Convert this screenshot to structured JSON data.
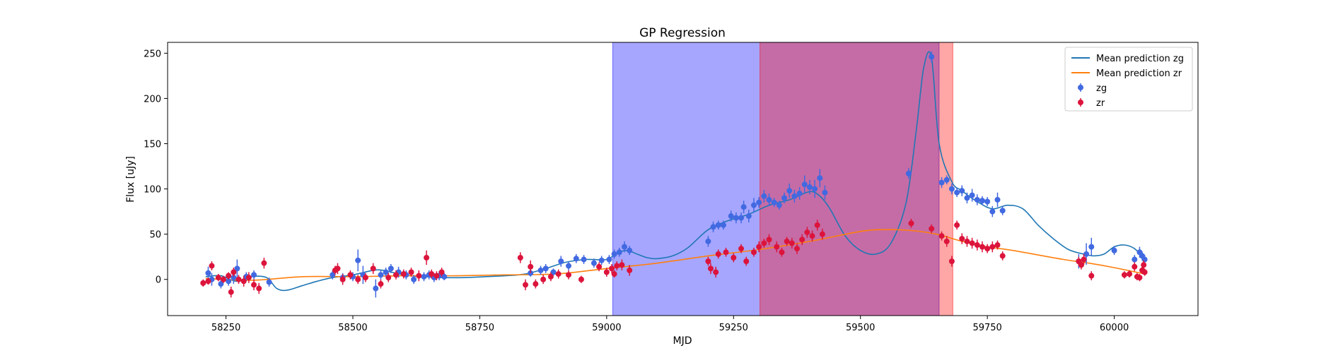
{
  "chart_data": {
    "type": "scatter",
    "title": "GP Regression",
    "xlabel": "MJD",
    "ylabel": "Flux [uJy]",
    "xlim": [
      58135,
      60165
    ],
    "ylim": [
      -40,
      262
    ],
    "xticks": [
      58250,
      58500,
      58750,
      59000,
      59250,
      59500,
      59750,
      60000
    ],
    "yticks": [
      0,
      50,
      100,
      150,
      200,
      250
    ],
    "grid": false,
    "legend_position": "top-right",
    "spans": [
      {
        "name": "zg window",
        "x0": 59012,
        "x1": 59655,
        "color": "#0000ff",
        "alpha": 0.35
      },
      {
        "name": "zr window",
        "x0": 59302,
        "x1": 59682,
        "color": "#ff0000",
        "alpha": 0.35
      }
    ],
    "lines": [
      {
        "name": "Mean prediction zg",
        "color": "#1f77b4",
        "x": [
          58210,
          58240,
          58270,
          58300,
          58330,
          58350,
          58370,
          58400,
          58430,
          58460,
          58500,
          58540,
          58560,
          58600,
          58640,
          58680,
          58720,
          58760,
          58800,
          58840,
          58880,
          58920,
          58960,
          59000,
          59020,
          59040,
          59060,
          59080,
          59100,
          59130,
          59160,
          59200,
          59240,
          59280,
          59320,
          59360,
          59400,
          59420,
          59440,
          59470,
          59500,
          59530,
          59560,
          59590,
          59610,
          59625,
          59640,
          59655,
          59680,
          59700,
          59730,
          59760,
          59790,
          59820,
          59850,
          59880,
          59910,
          59940,
          59960,
          59980,
          60000,
          60020,
          60040,
          60060
        ],
        "y": [
          3,
          4,
          -2,
          3,
          2,
          -10,
          -12,
          -7,
          -2,
          2,
          5,
          10,
          10,
          5,
          3,
          2,
          2,
          3,
          4,
          6,
          12,
          19,
          22,
          22,
          29,
          32,
          28,
          24,
          23,
          26,
          35,
          55,
          65,
          72,
          82,
          88,
          97,
          92,
          78,
          48,
          32,
          28,
          40,
          85,
          165,
          235,
          245,
          150,
          108,
          98,
          86,
          78,
          82,
          78,
          60,
          45,
          33,
          28,
          26,
          28,
          36,
          38,
          34,
          22
        ]
      },
      {
        "name": "Mean prediction zr",
        "color": "#ff7f0e",
        "x": [
          58210,
          58300,
          58400,
          58500,
          58600,
          58700,
          58800,
          58900,
          59000,
          59100,
          59200,
          59300,
          59400,
          59500,
          59550,
          59600,
          59650,
          59700,
          59750,
          59800,
          59900,
          59950,
          60000,
          60060
        ],
        "y": [
          1,
          -1,
          3,
          3,
          4,
          4,
          5,
          6,
          12,
          18,
          26,
          33,
          42,
          53,
          55,
          54,
          50,
          42,
          36,
          32,
          22,
          18,
          13,
          6
        ]
      }
    ],
    "series": [
      {
        "name": "zg",
        "color": "#4169e1",
        "points": [
          [
            58215,
            7,
            7
          ],
          [
            58222,
            0,
            7
          ],
          [
            58240,
            -5,
            5
          ],
          [
            58255,
            -2,
            5
          ],
          [
            58265,
            2,
            7
          ],
          [
            58272,
            12,
            10
          ],
          [
            58290,
            3,
            5
          ],
          [
            58305,
            5,
            5
          ],
          [
            58335,
            -3,
            5
          ],
          [
            58460,
            5,
            5
          ],
          [
            58480,
            2,
            5
          ],
          [
            58500,
            3,
            5
          ],
          [
            58510,
            21,
            12
          ],
          [
            58520,
            5,
            10
          ],
          [
            58545,
            -10,
            10
          ],
          [
            58555,
            5,
            5
          ],
          [
            58565,
            8,
            5
          ],
          [
            58575,
            12,
            5
          ],
          [
            58590,
            8,
            6
          ],
          [
            58605,
            5,
            5
          ],
          [
            58620,
            0,
            5
          ],
          [
            58640,
            3,
            5
          ],
          [
            58650,
            5,
            5
          ],
          [
            58660,
            2,
            5
          ],
          [
            58670,
            4,
            5
          ],
          [
            58680,
            3,
            4
          ],
          [
            58850,
            7,
            4
          ],
          [
            58870,
            10,
            5
          ],
          [
            58880,
            12,
            5
          ],
          [
            58895,
            8,
            4
          ],
          [
            58910,
            20,
            6
          ],
          [
            58925,
            15,
            5
          ],
          [
            58940,
            23,
            5
          ],
          [
            58955,
            22,
            5
          ],
          [
            58975,
            18,
            5
          ],
          [
            58990,
            21,
            5
          ],
          [
            59005,
            22,
            5
          ],
          [
            59015,
            28,
            5
          ],
          [
            59025,
            30,
            5
          ],
          [
            59035,
            36,
            6
          ],
          [
            59045,
            32,
            5
          ],
          [
            59200,
            42,
            6
          ],
          [
            59210,
            58,
            6
          ],
          [
            59220,
            60,
            5
          ],
          [
            59230,
            60,
            5
          ],
          [
            59245,
            70,
            6
          ],
          [
            59255,
            68,
            6
          ],
          [
            59265,
            68,
            6
          ],
          [
            59270,
            80,
            7
          ],
          [
            59280,
            70,
            7
          ],
          [
            59290,
            82,
            8
          ],
          [
            59300,
            85,
            6
          ],
          [
            59310,
            92,
            7
          ],
          [
            59320,
            88,
            7
          ],
          [
            59330,
            85,
            5
          ],
          [
            59340,
            82,
            5
          ],
          [
            59350,
            90,
            6
          ],
          [
            59360,
            98,
            8
          ],
          [
            59370,
            92,
            7
          ],
          [
            59380,
            95,
            7
          ],
          [
            59390,
            105,
            10
          ],
          [
            59400,
            102,
            8
          ],
          [
            59410,
            100,
            10
          ],
          [
            59420,
            112,
            10
          ],
          [
            59430,
            96,
            8
          ],
          [
            59595,
            117,
            6
          ],
          [
            59640,
            246,
            6
          ],
          [
            59660,
            107,
            6
          ],
          [
            59670,
            110,
            5
          ],
          [
            59680,
            100,
            6
          ],
          [
            59690,
            96,
            5
          ],
          [
            59700,
            98,
            6
          ],
          [
            59710,
            90,
            6
          ],
          [
            59720,
            93,
            7
          ],
          [
            59730,
            88,
            6
          ],
          [
            59740,
            87,
            5
          ],
          [
            59750,
            86,
            5
          ],
          [
            59760,
            75,
            6
          ],
          [
            59770,
            88,
            8
          ],
          [
            59780,
            76,
            5
          ],
          [
            59930,
            20,
            8
          ],
          [
            59945,
            28,
            12
          ],
          [
            59955,
            36,
            10
          ],
          [
            60000,
            32,
            5
          ],
          [
            60040,
            22,
            5
          ],
          [
            60050,
            30,
            6
          ],
          [
            60055,
            26,
            5
          ],
          [
            60060,
            22,
            5
          ]
        ]
      },
      {
        "name": "zr",
        "color": "#dc143c",
        "points": [
          [
            58205,
            -4,
            4
          ],
          [
            58215,
            -2,
            4
          ],
          [
            58222,
            15,
            5
          ],
          [
            58235,
            2,
            4
          ],
          [
            58245,
            0,
            4
          ],
          [
            58255,
            4,
            4
          ],
          [
            58260,
            -14,
            6
          ],
          [
            58265,
            8,
            5
          ],
          [
            58275,
            0,
            5
          ],
          [
            58285,
            -2,
            6
          ],
          [
            58295,
            2,
            6
          ],
          [
            58305,
            -6,
            6
          ],
          [
            58315,
            -10,
            6
          ],
          [
            58325,
            18,
            6
          ],
          [
            58465,
            10,
            5
          ],
          [
            58470,
            12,
            6
          ],
          [
            58480,
            0,
            6
          ],
          [
            58495,
            5,
            5
          ],
          [
            58510,
            0,
            5
          ],
          [
            58525,
            2,
            5
          ],
          [
            58540,
            12,
            6
          ],
          [
            58555,
            -5,
            5
          ],
          [
            58570,
            2,
            5
          ],
          [
            58585,
            5,
            5
          ],
          [
            58600,
            6,
            5
          ],
          [
            58615,
            8,
            5
          ],
          [
            58630,
            4,
            6
          ],
          [
            58645,
            24,
            8
          ],
          [
            58655,
            6,
            5
          ],
          [
            58665,
            4,
            5
          ],
          [
            58675,
            8,
            5
          ],
          [
            58830,
            24,
            6
          ],
          [
            58840,
            -6,
            6
          ],
          [
            58850,
            14,
            7
          ],
          [
            58860,
            -5,
            5
          ],
          [
            58875,
            0,
            5
          ],
          [
            58890,
            3,
            5
          ],
          [
            58905,
            6,
            5
          ],
          [
            58925,
            5,
            5
          ],
          [
            58950,
            0,
            4
          ],
          [
            58985,
            14,
            5
          ],
          [
            59000,
            8,
            5
          ],
          [
            59010,
            12,
            5
          ],
          [
            59015,
            6,
            4
          ],
          [
            59020,
            15,
            5
          ],
          [
            59030,
            16,
            6
          ],
          [
            59045,
            10,
            6
          ],
          [
            59200,
            20,
            5
          ],
          [
            59205,
            12,
            6
          ],
          [
            59215,
            8,
            6
          ],
          [
            59220,
            28,
            5
          ],
          [
            59235,
            30,
            5
          ],
          [
            59250,
            24,
            5
          ],
          [
            59265,
            34,
            5
          ],
          [
            59275,
            20,
            5
          ],
          [
            59290,
            30,
            5
          ],
          [
            59300,
            36,
            6
          ],
          [
            59310,
            40,
            5
          ],
          [
            59320,
            44,
            6
          ],
          [
            59335,
            36,
            6
          ],
          [
            59345,
            30,
            5
          ],
          [
            59355,
            42,
            5
          ],
          [
            59365,
            40,
            6
          ],
          [
            59375,
            34,
            6
          ],
          [
            59385,
            44,
            6
          ],
          [
            59395,
            52,
            6
          ],
          [
            59405,
            48,
            6
          ],
          [
            59415,
            60,
            6
          ],
          [
            59425,
            50,
            6
          ],
          [
            59600,
            62,
            5
          ],
          [
            59640,
            56,
            5
          ],
          [
            59660,
            48,
            5
          ],
          [
            59670,
            42,
            6
          ],
          [
            59680,
            20,
            6
          ],
          [
            59690,
            60,
            5
          ],
          [
            59700,
            45,
            6
          ],
          [
            59710,
            42,
            6
          ],
          [
            59720,
            40,
            6
          ],
          [
            59730,
            38,
            6
          ],
          [
            59740,
            36,
            6
          ],
          [
            59750,
            34,
            5
          ],
          [
            59760,
            36,
            6
          ],
          [
            59770,
            38,
            5
          ],
          [
            59780,
            26,
            5
          ],
          [
            59930,
            20,
            5
          ],
          [
            59935,
            16,
            5
          ],
          [
            59940,
            22,
            6
          ],
          [
            59955,
            4,
            5
          ],
          [
            60020,
            5,
            4
          ],
          [
            60030,
            6,
            4
          ],
          [
            60040,
            14,
            5
          ],
          [
            60045,
            3,
            4
          ],
          [
            60050,
            2,
            4
          ],
          [
            60055,
            10,
            4
          ],
          [
            60058,
            16,
            5
          ],
          [
            60060,
            8,
            4
          ]
        ]
      }
    ]
  }
}
